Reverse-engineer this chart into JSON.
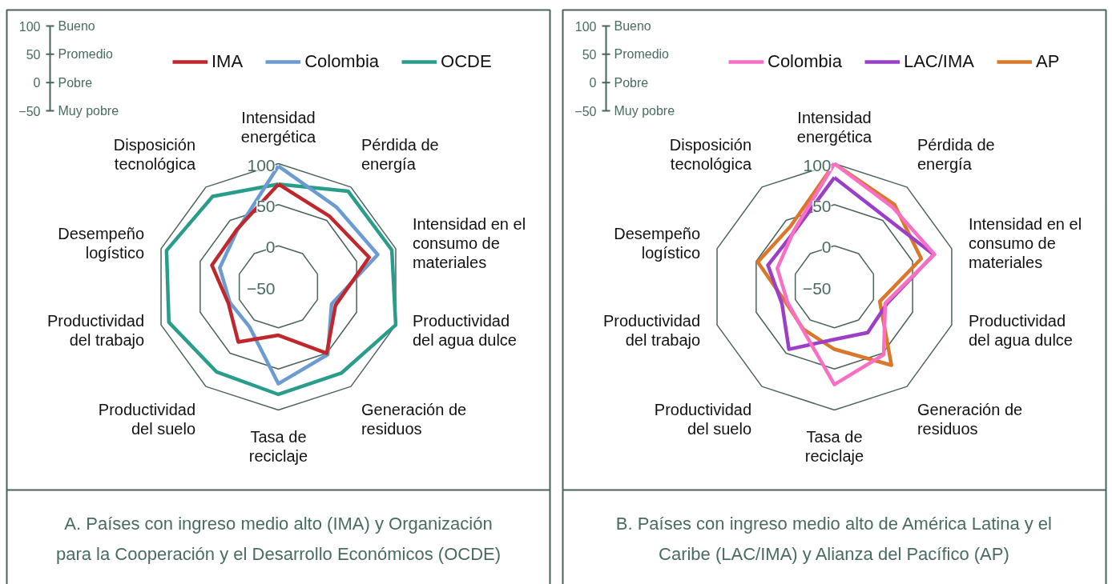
{
  "chart_data": [
    {
      "type": "radar",
      "title": "A. Países con ingreso medio alto (IMA) y Organización para la Cooperación y el Desarrollo Económicos (OCDE)",
      "categories": [
        "Intensidad energética",
        "Pérdida de energía",
        "Intensidad en el consumo de materiales",
        "Productividad del agua dulce",
        "Generación de residuos",
        "Tasa de reciclaje",
        "Productividad del suelo",
        "Productividad del trabajo",
        "Desempeño logístico",
        "Disposición tecnológica"
      ],
      "series": [
        {
          "name": "IMA",
          "color": "#c0272d",
          "values": [
            75,
            56,
            66,
            23,
            50,
            9,
            33,
            14,
            35,
            36
          ]
        },
        {
          "name": "Colombia",
          "color": "#6b9bd1",
          "values": [
            97,
            70,
            77,
            18,
            52,
            68,
            10,
            12,
            25,
            35
          ]
        },
        {
          "name": "OCDE",
          "color": "#2a9d8a",
          "values": [
            75,
            94,
            95,
            100,
            80,
            81,
            78,
            90,
            93,
            86
          ]
        }
      ],
      "ylim": [
        -50,
        100
      ],
      "yticks": [
        100,
        50,
        0,
        {
          "value": -50,
          "label": "−50"
        }
      ],
      "annotations": [
        "100",
        "Bueno",
        "50",
        "Promedio",
        "0",
        "Pobre",
        "−50",
        "Muy pobre"
      ],
      "grid": true,
      "legend": "top",
      "line_style": "solid"
    },
    {
      "type": "radar",
      "title": "B. Países con ingreso medio alto de América Latina y el Caribe (LAC/IMA) y Alianza del Pacífico (AP)",
      "categories": [
        "Intensidad energética",
        "Pérdida de energía",
        "Intensidad en el consumo de materiales",
        "Productividad del agua dulce",
        "Generación de residuos",
        "Tasa de reciclaje",
        "Productividad del suelo",
        "Productividad del trabajo",
        "Desempeño logístico",
        "Disposición tecnológica"
      ],
      "series": [
        {
          "name": "Colombia",
          "color": "#f86fc4",
          "values": [
            100,
            70,
            78,
            15,
            52,
            69,
            15,
            10,
            23,
            34
          ]
        },
        {
          "name": "LAC/IMA",
          "color": "#9b3fc8",
          "values": [
            83,
            55,
            77,
            17,
            19,
            14,
            44,
            17,
            35,
            33
          ]
        },
        {
          "name": "AP",
          "color": "#d9772b",
          "values": [
            100,
            74,
            61,
            8,
            68,
            26,
            14,
            12,
            48,
            41
          ]
        }
      ],
      "ylim": [
        -50,
        100
      ],
      "yticks": [
        100,
        50,
        0,
        {
          "value": -50,
          "label": "−50"
        }
      ],
      "annotations": [
        "100",
        "Bueno",
        "50",
        "Promedio",
        "0",
        "Pobre",
        "−50",
        "Muy pobre"
      ],
      "grid": true,
      "legend": "top",
      "line_style": "solid"
    }
  ]
}
